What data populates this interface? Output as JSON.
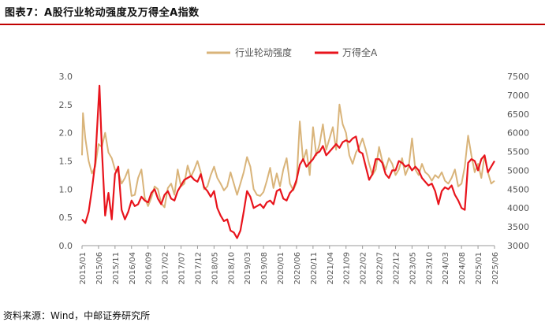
{
  "figure": {
    "title": "图表7：A股行业轮动强度及万得全A指数",
    "source": "资料来源：Wind，中邮证券研究所"
  },
  "chart_data": {
    "type": "line",
    "series": [
      {
        "name": "行业轮动强度",
        "axis": "left",
        "color": "#d9b47a",
        "points": [
          [
            "2015/01",
            1.6
          ],
          [
            "2015/01",
            2.35
          ],
          [
            "2015/02",
            1.9
          ],
          [
            "2015/03",
            1.5
          ],
          [
            "2015/04",
            1.28
          ],
          [
            "2015/05",
            1.4
          ],
          [
            "2015/06",
            1.8
          ],
          [
            "2015/07",
            1.75
          ],
          [
            "2015/08",
            2.0
          ],
          [
            "2015/09",
            1.65
          ],
          [
            "2015/10",
            1.55
          ],
          [
            "2015/11",
            1.35
          ],
          [
            "2015/12",
            1.3
          ],
          [
            "2016/01",
            1.1
          ],
          [
            "2016/02",
            1.2
          ],
          [
            "2016/03",
            1.35
          ],
          [
            "2016/04",
            0.88
          ],
          [
            "2016/05",
            0.9
          ],
          [
            "2016/06",
            1.2
          ],
          [
            "2016/07",
            1.35
          ],
          [
            "2016/08",
            0.85
          ],
          [
            "2016/09",
            0.7
          ],
          [
            "2016/10",
            0.85
          ],
          [
            "2016/11",
            1.05
          ],
          [
            "2016/12",
            1.0
          ],
          [
            "2017/01",
            0.75
          ],
          [
            "2017/02",
            0.68
          ],
          [
            "2017/03",
            1.02
          ],
          [
            "2017/04",
            1.1
          ],
          [
            "2017/05",
            0.9
          ],
          [
            "2017/06",
            1.35
          ],
          [
            "2017/07",
            1.05
          ],
          [
            "2017/08",
            1.1
          ],
          [
            "2017/09",
            1.42
          ],
          [
            "2017/10",
            1.22
          ],
          [
            "2017/11",
            1.35
          ],
          [
            "2017/12",
            1.5
          ],
          [
            "2018/01",
            1.3
          ],
          [
            "2018/02",
            1.0
          ],
          [
            "2018/03",
            1.05
          ],
          [
            "2018/04",
            1.25
          ],
          [
            "2018/05",
            1.4
          ],
          [
            "2018/06",
            1.2
          ],
          [
            "2018/07",
            1.1
          ],
          [
            "2018/08",
            0.98
          ],
          [
            "2018/09",
            1.05
          ],
          [
            "2018/10",
            1.3
          ],
          [
            "2018/11",
            1.1
          ],
          [
            "2018/12",
            0.9
          ],
          [
            "2019/01",
            1.1
          ],
          [
            "2019/02",
            1.3
          ],
          [
            "2019/03",
            1.57
          ],
          [
            "2019/04",
            1.4
          ],
          [
            "2019/05",
            1.0
          ],
          [
            "2019/06",
            0.9
          ],
          [
            "2019/07",
            0.88
          ],
          [
            "2019/08",
            0.95
          ],
          [
            "2019/09",
            1.15
          ],
          [
            "2019/10",
            1.38
          ],
          [
            "2019/11",
            1.02
          ],
          [
            "2019/12",
            1.28
          ],
          [
            "2020/01",
            1.05
          ],
          [
            "2020/02",
            1.35
          ],
          [
            "2020/03",
            1.55
          ],
          [
            "2020/04",
            1.1
          ],
          [
            "2020/05",
            0.98
          ],
          [
            "2020/06",
            1.12
          ],
          [
            "2020/07",
            2.2
          ],
          [
            "2020/08",
            1.5
          ],
          [
            "2020/09",
            1.7
          ],
          [
            "2020/10",
            1.25
          ],
          [
            "2020/11",
            2.1
          ],
          [
            "2020/12",
            1.6
          ],
          [
            "2021/01",
            1.8
          ],
          [
            "2021/02",
            2.15
          ],
          [
            "2021/03",
            1.7
          ],
          [
            "2021/04",
            1.9
          ],
          [
            "2021/05",
            2.1
          ],
          [
            "2021/06",
            1.7
          ],
          [
            "2021/07",
            2.5
          ],
          [
            "2021/08",
            2.15
          ],
          [
            "2021/09",
            2.0
          ],
          [
            "2021/10",
            1.6
          ],
          [
            "2021/11",
            1.45
          ],
          [
            "2021/12",
            1.65
          ],
          [
            "2022/01",
            1.75
          ],
          [
            "2022/02",
            1.9
          ],
          [
            "2022/03",
            1.7
          ],
          [
            "2022/04",
            1.45
          ],
          [
            "2022/05",
            1.25
          ],
          [
            "2022/06",
            1.35
          ],
          [
            "2022/07",
            1.75
          ],
          [
            "2022/08",
            1.5
          ],
          [
            "2022/09",
            1.35
          ],
          [
            "2022/10",
            1.55
          ],
          [
            "2022/11",
            1.45
          ],
          [
            "2022/12",
            1.25
          ],
          [
            "2023/01",
            1.35
          ],
          [
            "2023/02",
            1.55
          ],
          [
            "2023/03",
            1.25
          ],
          [
            "2023/04",
            1.4
          ],
          [
            "2023/05",
            1.9
          ],
          [
            "2023/06",
            1.35
          ],
          [
            "2023/07",
            1.25
          ],
          [
            "2023/08",
            1.45
          ],
          [
            "2023/09",
            1.3
          ],
          [
            "2023/10",
            1.25
          ],
          [
            "2023/11",
            1.15
          ],
          [
            "2023/12",
            1.25
          ],
          [
            "2024/01",
            1.2
          ],
          [
            "2024/02",
            1.3
          ],
          [
            "2024/03",
            1.15
          ],
          [
            "2024/04",
            1.1
          ],
          [
            "2024/05",
            1.2
          ],
          [
            "2024/06",
            1.35
          ],
          [
            "2024/07",
            1.05
          ],
          [
            "2024/08",
            1.1
          ],
          [
            "2024/09",
            1.4
          ],
          [
            "2024/10",
            1.95
          ],
          [
            "2024/11",
            1.6
          ],
          [
            "2024/12",
            1.3
          ],
          [
            "2025/01",
            1.45
          ],
          [
            "2025/02",
            1.2
          ],
          [
            "2025/03",
            1.6
          ],
          [
            "2025/04",
            1.3
          ],
          [
            "2025/05",
            1.1
          ],
          [
            "2025/06",
            1.15
          ]
        ]
      },
      {
        "name": "万得全A",
        "axis": "right",
        "color": "#e8141c",
        "points": [
          [
            "2015/01",
            3700
          ],
          [
            "2015/02",
            3600
          ],
          [
            "2015/03",
            3900
          ],
          [
            "2015/04",
            4500
          ],
          [
            "2015/05",
            5200
          ],
          [
            "2015/06",
            6800
          ],
          [
            "2015/06",
            7250
          ],
          [
            "2015/07",
            5600
          ],
          [
            "2015/08",
            3800
          ],
          [
            "2015/09",
            4400
          ],
          [
            "2015/10",
            3700
          ],
          [
            "2015/11",
            4900
          ],
          [
            "2015/12",
            5100
          ],
          [
            "2016/01",
            3950
          ],
          [
            "2016/02",
            3700
          ],
          [
            "2016/03",
            3900
          ],
          [
            "2016/04",
            4200
          ],
          [
            "2016/05",
            4050
          ],
          [
            "2016/06",
            4100
          ],
          [
            "2016/07",
            4300
          ],
          [
            "2016/08",
            4200
          ],
          [
            "2016/09",
            4150
          ],
          [
            "2016/10",
            4400
          ],
          [
            "2016/11",
            4500
          ],
          [
            "2016/12",
            4250
          ],
          [
            "2017/01",
            4100
          ],
          [
            "2017/02",
            4350
          ],
          [
            "2017/03",
            4450
          ],
          [
            "2017/04",
            4250
          ],
          [
            "2017/05",
            4200
          ],
          [
            "2017/06",
            4450
          ],
          [
            "2017/07",
            4600
          ],
          [
            "2017/08",
            4750
          ],
          [
            "2017/09",
            4800
          ],
          [
            "2017/10",
            4850
          ],
          [
            "2017/11",
            4750
          ],
          [
            "2017/12",
            4700
          ],
          [
            "2018/01",
            4900
          ],
          [
            "2018/02",
            4550
          ],
          [
            "2018/03",
            4450
          ],
          [
            "2018/04",
            4300
          ],
          [
            "2018/05",
            4450
          ],
          [
            "2018/06",
            4000
          ],
          [
            "2018/07",
            3800
          ],
          [
            "2018/08",
            3650
          ],
          [
            "2018/09",
            3700
          ],
          [
            "2018/10",
            3400
          ],
          [
            "2018/11",
            3350
          ],
          [
            "2018/12",
            3200
          ],
          [
            "2019/01",
            3400
          ],
          [
            "2019/02",
            3900
          ],
          [
            "2019/03",
            4450
          ],
          [
            "2019/04",
            4300
          ],
          [
            "2019/05",
            4000
          ],
          [
            "2019/06",
            4050
          ],
          [
            "2019/07",
            4100
          ],
          [
            "2019/08",
            4000
          ],
          [
            "2019/09",
            4150
          ],
          [
            "2019/10",
            4200
          ],
          [
            "2019/11",
            4100
          ],
          [
            "2019/12",
            4450
          ],
          [
            "2020/01",
            4500
          ],
          [
            "2020/02",
            4250
          ],
          [
            "2020/03",
            4200
          ],
          [
            "2020/04",
            4400
          ],
          [
            "2020/05",
            4500
          ],
          [
            "2020/06",
            4750
          ],
          [
            "2020/07",
            5150
          ],
          [
            "2020/08",
            5300
          ],
          [
            "2020/09",
            5100
          ],
          [
            "2020/10",
            5200
          ],
          [
            "2020/11",
            5300
          ],
          [
            "2020/12",
            5450
          ],
          [
            "2021/01",
            5500
          ],
          [
            "2021/02",
            5650
          ],
          [
            "2021/03",
            5400
          ],
          [
            "2021/04",
            5500
          ],
          [
            "2021/05",
            5600
          ],
          [
            "2021/06",
            5700
          ],
          [
            "2021/07",
            5600
          ],
          [
            "2021/08",
            5750
          ],
          [
            "2021/09",
            5800
          ],
          [
            "2021/10",
            5750
          ],
          [
            "2021/11",
            5850
          ],
          [
            "2021/12",
            5900
          ],
          [
            "2022/01",
            5500
          ],
          [
            "2022/02",
            5450
          ],
          [
            "2022/03",
            5100
          ],
          [
            "2022/04",
            4750
          ],
          [
            "2022/05",
            4900
          ],
          [
            "2022/06",
            5300
          ],
          [
            "2022/07",
            5300
          ],
          [
            "2022/08",
            5200
          ],
          [
            "2022/09",
            4900
          ],
          [
            "2022/10",
            4800
          ],
          [
            "2022/11",
            5000
          ],
          [
            "2022/12",
            5000
          ],
          [
            "2023/01",
            5250
          ],
          [
            "2023/02",
            5200
          ],
          [
            "2023/03",
            5100
          ],
          [
            "2023/04",
            5150
          ],
          [
            "2023/05",
            5000
          ],
          [
            "2023/06",
            5100
          ],
          [
            "2023/07",
            5000
          ],
          [
            "2023/08",
            4800
          ],
          [
            "2023/09",
            4700
          ],
          [
            "2023/10",
            4600
          ],
          [
            "2023/11",
            4650
          ],
          [
            "2023/12",
            4450
          ],
          [
            "2024/01",
            4100
          ],
          [
            "2024/02",
            4450
          ],
          [
            "2024/03",
            4550
          ],
          [
            "2024/04",
            4500
          ],
          [
            "2024/05",
            4600
          ],
          [
            "2024/06",
            4350
          ],
          [
            "2024/07",
            4200
          ],
          [
            "2024/08",
            4000
          ],
          [
            "2024/09",
            3950
          ],
          [
            "2024/10",
            5200
          ],
          [
            "2024/11",
            5300
          ],
          [
            "2024/12",
            5250
          ],
          [
            "2025/01",
            5000
          ],
          [
            "2025/02",
            5300
          ],
          [
            "2025/03",
            5400
          ],
          [
            "2025/04",
            4950
          ],
          [
            "2025/05",
            5100
          ],
          [
            "2025/06",
            5250
          ]
        ]
      }
    ],
    "x_ticks": [
      "2015/01",
      "2015/06",
      "2015/11",
      "2016/04",
      "2016/09",
      "2017/02",
      "2017/07",
      "2017/12",
      "2018/05",
      "2018/10",
      "2019/03",
      "2019/08",
      "2020/01",
      "2020/06",
      "2020/11",
      "2021/04",
      "2021/09",
      "2022/02",
      "2022/07",
      "2022/12",
      "2023/05",
      "2023/10",
      "2024/03",
      "2024/08",
      "2025/01",
      "2025/06"
    ],
    "y_left": {
      "ylim": [
        0,
        3.0
      ],
      "ticks": [
        "0.0",
        "0.5",
        "1.0",
        "1.5",
        "2.0",
        "2.5",
        "3.0"
      ]
    },
    "y_right": {
      "ylim": [
        3000,
        7500
      ],
      "ticks": [
        "3000",
        "3500",
        "4000",
        "4500",
        "5000",
        "5500",
        "6000",
        "6500",
        "7000",
        "7500"
      ]
    },
    "legend": "top-center",
    "grid": false
  }
}
